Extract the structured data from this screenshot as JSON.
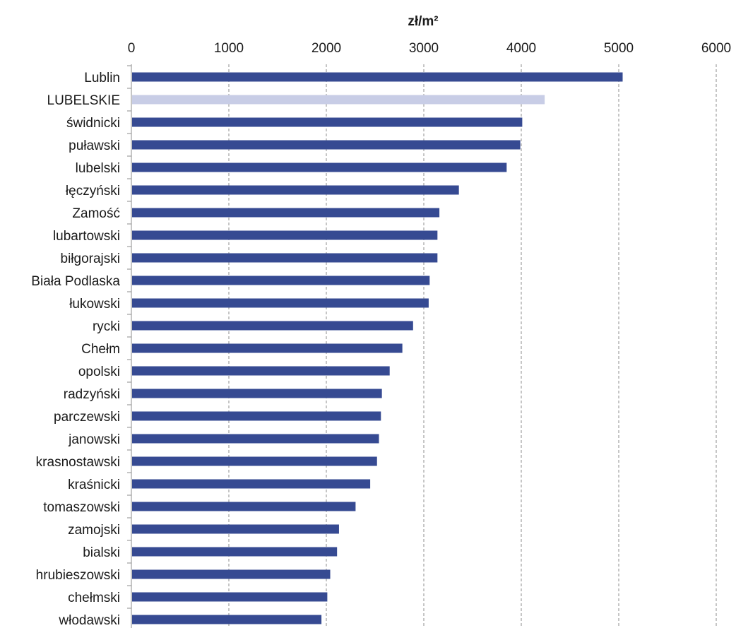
{
  "chart_data": {
    "type": "bar",
    "orientation": "horizontal",
    "unit_label": "zł/m²",
    "xlim": [
      0,
      6000
    ],
    "x_ticks": [
      "0",
      "1000",
      "2000",
      "3000",
      "4000",
      "5000",
      "6000"
    ],
    "grid": "vertical dashed",
    "colors": {
      "default": "#364a92",
      "highlight": "#c8cde6",
      "grid": "#8c8c8c",
      "axis": "#8c8c8c"
    },
    "highlight_category": "LUBELSKIE",
    "categories": [
      "Lublin",
      "LUBELSKIE",
      "świdnicki",
      "puławski",
      "lubelski",
      "łęczyński",
      "Zamość",
      "lubartowski",
      "biłgorajski",
      "Biała Podlaska",
      "łukowski",
      "rycki",
      "Chełm",
      "opolski",
      "radzyński",
      "parczewski",
      "janowski",
      "krasnostawski",
      "kraśnicki",
      "tomaszowski",
      "zamojski",
      "bialski",
      "hrubieszowski",
      "chełmski",
      "włodawski"
    ],
    "values": [
      5040,
      4240,
      4010,
      3990,
      3850,
      3360,
      3160,
      3140,
      3140,
      3060,
      3050,
      2890,
      2780,
      2650,
      2570,
      2560,
      2540,
      2520,
      2450,
      2300,
      2130,
      2110,
      2040,
      2010,
      1950
    ]
  }
}
